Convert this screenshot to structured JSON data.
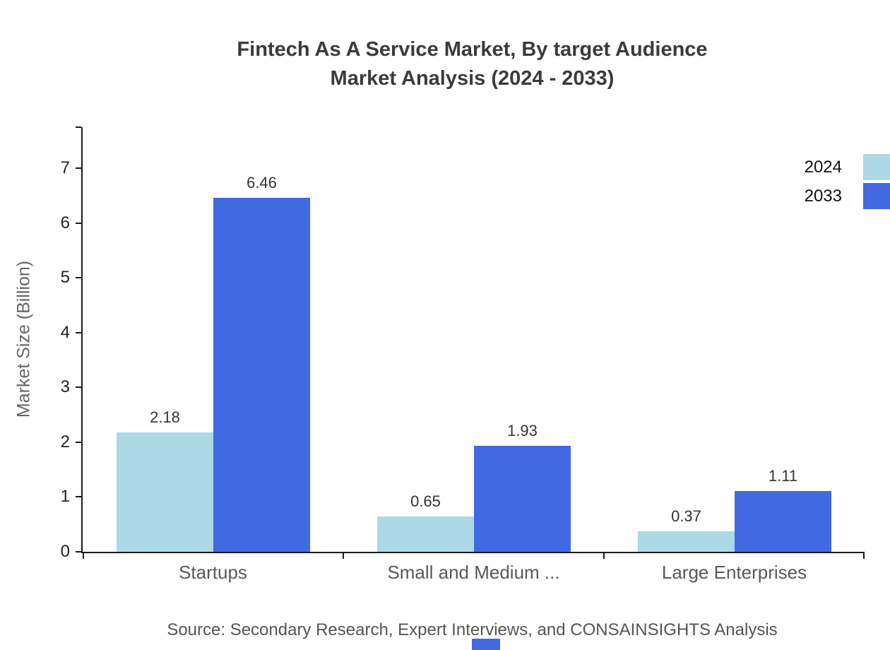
{
  "title": {
    "line1": "Fintech As A Service Market, By target Audience",
    "line2": "Market Analysis (2024 - 2033)"
  },
  "y_axis": {
    "label": "Market Size (Billion)"
  },
  "source": "Source: Secondary Research, Expert Interviews, and CONSAINSIGHTS Analysis",
  "colors": {
    "series_2024": "#ADD8E6",
    "series_2033": "#4169E1",
    "axis": "#1a1a1a"
  },
  "chart_data": {
    "type": "bar",
    "title": "Fintech As A Service Market, By target Audience Market Analysis (2024 - 2033)",
    "categories": [
      "Startups",
      "Small and Medium ...",
      "Large Enterprises"
    ],
    "series": [
      {
        "name": "2024",
        "color": "#ADD8E6",
        "values": [
          2.18,
          0.65,
          0.37
        ]
      },
      {
        "name": "2033",
        "color": "#4169E1",
        "values": [
          6.46,
          1.93,
          1.11
        ]
      }
    ],
    "xlabel": "",
    "ylabel": "Market Size (Billion)",
    "ylim": [
      0,
      7.75
    ],
    "yticks": [
      0,
      1,
      2,
      3,
      4,
      5,
      6,
      7
    ],
    "grid": false,
    "legend_position": "top-right",
    "data_labels": true
  }
}
